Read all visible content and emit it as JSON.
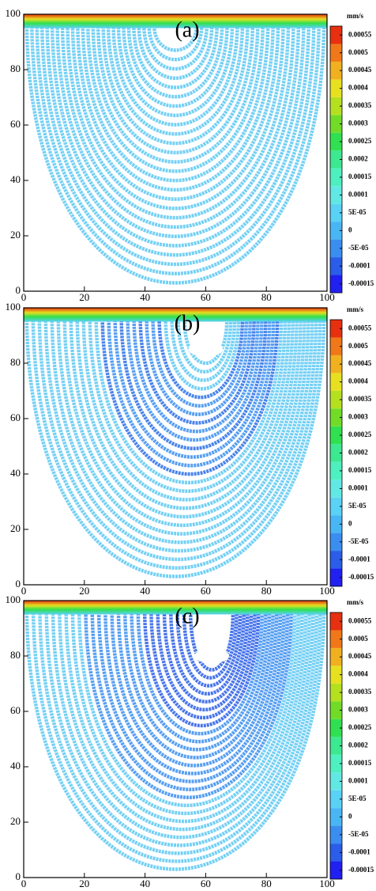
{
  "chart_data": [
    {
      "type": "streamline",
      "title": "(a)",
      "unit": "mm/s",
      "xlim": [
        0,
        100
      ],
      "ylim": [
        0,
        100
      ],
      "xticks": [
        0,
        20,
        40,
        60,
        80,
        100
      ],
      "yticks": [
        0,
        20,
        40,
        60,
        80,
        100
      ],
      "clim": [
        -0.000175,
        0.000575
      ],
      "colorbar_ticks": [
        0.00055,
        0.0005,
        0.00045,
        0.0004,
        0.00035,
        0.0003,
        0.00025,
        0.0002,
        0.00015,
        0.0001,
        {
          "value": 5e-05,
          "label": "5E-05"
        },
        0,
        {
          "value": -5e-05,
          "label": "-5E-05"
        },
        -0.0001,
        -0.00015
      ],
      "colors": [
        "#2020f0",
        "#2a5ee8",
        "#3a8ef0",
        "#48b6f4",
        "#5ad2f6",
        "#62e8e4",
        "#4ef0c0",
        "#3ce890",
        "#30e050",
        "#70dc28",
        "#b4e020",
        "#e6e020",
        "#f0b020",
        "#f07818",
        "#e63010"
      ]
    },
    {
      "type": "streamline",
      "title": "(b)",
      "unit": "mm/s",
      "xlim": [
        0,
        100
      ],
      "ylim": [
        0,
        100
      ],
      "xticks": [
        0,
        20,
        40,
        60,
        80,
        100
      ],
      "yticks": [
        0,
        20,
        40,
        60,
        80,
        100
      ],
      "clim": [
        -0.000175,
        0.000575
      ],
      "colorbar_ticks": [
        0.00055,
        0.0005,
        0.00045,
        0.0004,
        0.00035,
        0.0003,
        0.00025,
        0.0002,
        0.00015,
        0.0001,
        {
          "value": 5e-05,
          "label": "5E-05"
        },
        0,
        {
          "value": -5e-05,
          "label": "-5E-05"
        },
        -0.0001,
        -0.00015
      ],
      "colors": [
        "#2020f0",
        "#2a5ee8",
        "#3a8ef0",
        "#48b6f4",
        "#5ad2f6",
        "#62e8e4",
        "#4ef0c0",
        "#3ce890",
        "#30e050",
        "#70dc28",
        "#b4e020",
        "#e6e020",
        "#f0b020",
        "#f07818",
        "#e63010"
      ]
    },
    {
      "type": "streamline",
      "title": "(c)",
      "unit": "mm/s",
      "xlim": [
        0,
        100
      ],
      "ylim": [
        0,
        100
      ],
      "xticks": [
        0,
        20,
        40,
        60,
        80,
        100
      ],
      "yticks": [
        0,
        20,
        40,
        60,
        80,
        100
      ],
      "clim": [
        -0.000175,
        0.000575
      ],
      "colorbar_ticks": [
        0.00055,
        0.0005,
        0.00045,
        0.0004,
        0.00035,
        0.0003,
        0.00025,
        0.0002,
        0.00015,
        0.0001,
        {
          "value": 5e-05,
          "label": "5E-05"
        },
        0,
        {
          "value": -5e-05,
          "label": "-5E-05"
        },
        -0.0001,
        -0.00015
      ],
      "colors": [
        "#2020f0",
        "#2a5ee8",
        "#3a8ef0",
        "#48b6f4",
        "#5ad2f6",
        "#62e8e4",
        "#4ef0c0",
        "#3ce890",
        "#30e050",
        "#70dc28",
        "#b4e020",
        "#e6e020",
        "#f0b020",
        "#f07818",
        "#e63010"
      ]
    }
  ]
}
